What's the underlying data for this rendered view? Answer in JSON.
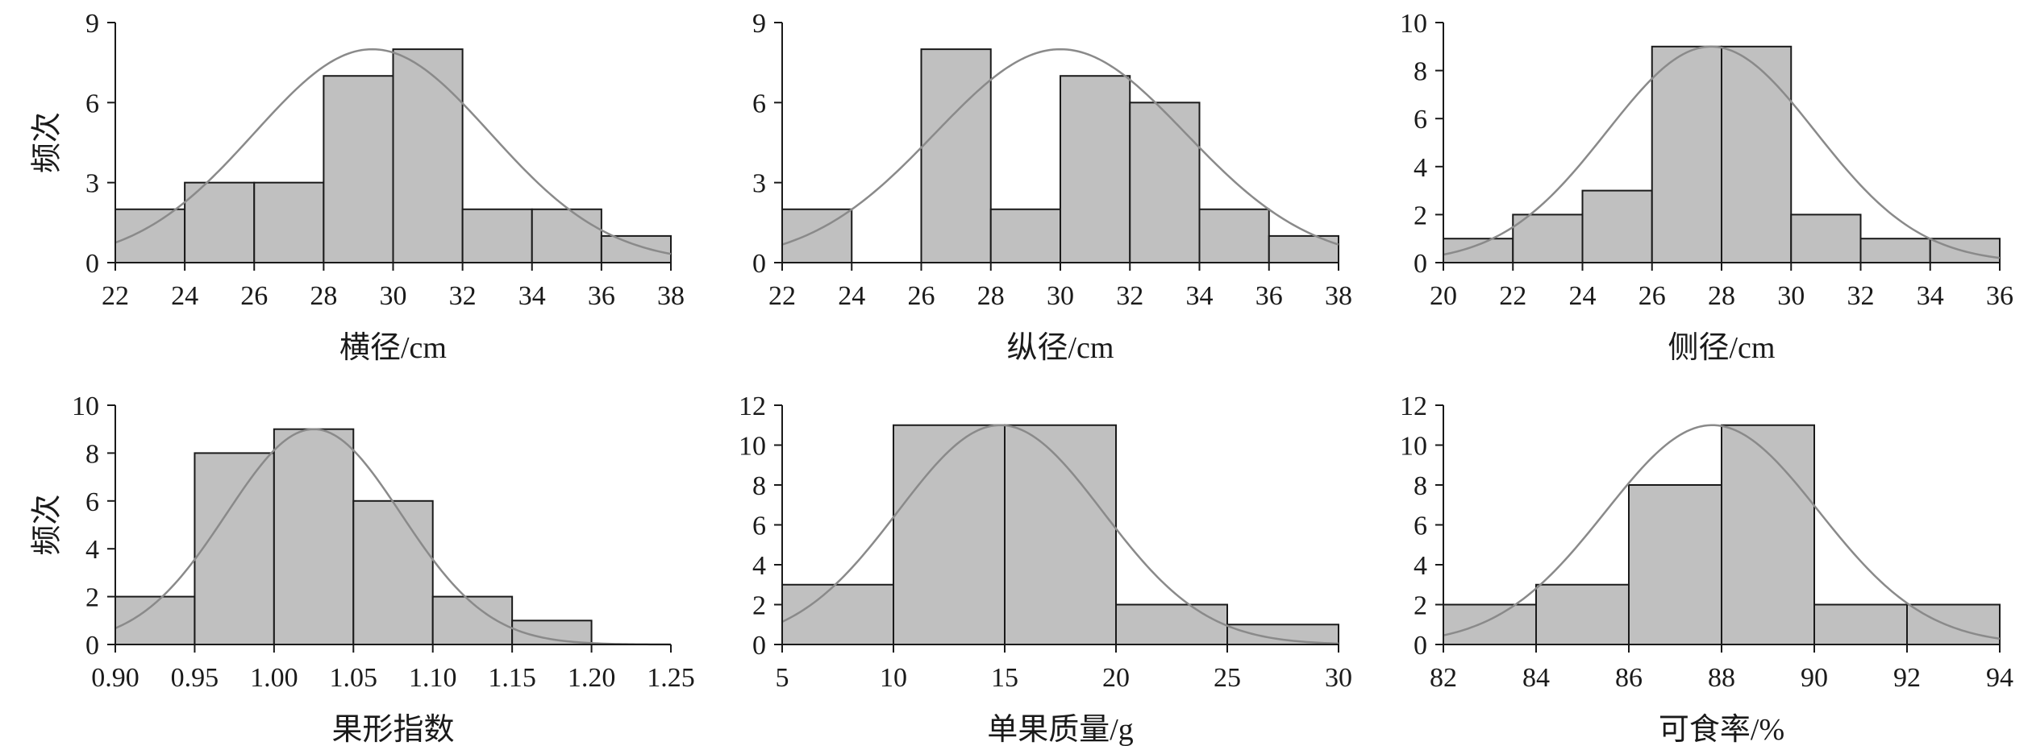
{
  "chart_data": [
    {
      "type": "bar",
      "xlabel": "横径/cm",
      "ylabel": "频次",
      "xlim": [
        22,
        38
      ],
      "ylim": [
        0,
        9
      ],
      "xticks": [
        "22",
        "24",
        "26",
        "28",
        "30",
        "32",
        "34",
        "36",
        "38"
      ],
      "yticks": [
        "0",
        "3",
        "6",
        "9"
      ],
      "bin_edges": [
        22,
        24,
        26,
        28,
        30,
        32,
        34,
        36,
        38
      ],
      "values": [
        2,
        3,
        3,
        7,
        8,
        2,
        2,
        1
      ],
      "normal_curve": {
        "mean": 29.4,
        "sd": 3.4,
        "peak": 8
      }
    },
    {
      "type": "bar",
      "xlabel": "纵径/cm",
      "ylabel": "",
      "xlim": [
        22,
        38
      ],
      "ylim": [
        0,
        9
      ],
      "xticks": [
        "22",
        "24",
        "26",
        "28",
        "30",
        "32",
        "34",
        "36",
        "38"
      ],
      "yticks": [
        "0",
        "3",
        "6",
        "9"
      ],
      "bin_edges": [
        22,
        24,
        26,
        28,
        30,
        32,
        34,
        36,
        38
      ],
      "values": [
        2,
        0,
        8,
        2,
        7,
        6,
        2,
        1
      ],
      "normal_curve": {
        "mean": 30.0,
        "sd": 3.6,
        "peak": 8
      }
    },
    {
      "type": "bar",
      "xlabel": "侧径/cm",
      "ylabel": "",
      "xlim": [
        20,
        36
      ],
      "ylim": [
        0,
        10
      ],
      "xticks": [
        "20",
        "22",
        "24",
        "26",
        "28",
        "30",
        "32",
        "34",
        "36"
      ],
      "yticks": [
        "0",
        "2",
        "4",
        "6",
        "8",
        "10"
      ],
      "bin_edges": [
        20,
        22,
        24,
        26,
        28,
        30,
        32,
        34,
        36
      ],
      "values": [
        1,
        2,
        3,
        9,
        9,
        2,
        1,
        1
      ],
      "normal_curve": {
        "mean": 27.7,
        "sd": 3.0,
        "peak": 9
      }
    },
    {
      "type": "bar",
      "xlabel": "果形指数",
      "ylabel": "频次",
      "xlim": [
        0.9,
        1.25
      ],
      "ylim": [
        0,
        10
      ],
      "xticks": [
        "0.90",
        "0.95",
        "1.00",
        "1.05",
        "1.10",
        "1.15",
        "1.20",
        "1.25"
      ],
      "yticks": [
        "0",
        "2",
        "4",
        "6",
        "8",
        "10"
      ],
      "bin_edges": [
        0.9,
        0.95,
        1.0,
        1.05,
        1.1,
        1.15,
        1.2
      ],
      "values": [
        2,
        8,
        9,
        6,
        2,
        1
      ],
      "normal_curve": {
        "mean": 1.025,
        "sd": 0.055,
        "peak": 9
      }
    },
    {
      "type": "bar",
      "xlabel": "单果质量/g",
      "ylabel": "",
      "xlim": [
        5,
        30
      ],
      "ylim": [
        0,
        12
      ],
      "xticks": [
        "5",
        "10",
        "15",
        "20",
        "25",
        "30"
      ],
      "yticks": [
        "0",
        "2",
        "4",
        "6",
        "8",
        "10",
        "12"
      ],
      "bin_edges": [
        5,
        10,
        15,
        20,
        25,
        30
      ],
      "values": [
        3,
        11,
        11,
        2,
        1
      ],
      "normal_curve": {
        "mean": 14.8,
        "sd": 4.6,
        "peak": 11
      }
    },
    {
      "type": "bar",
      "xlabel": "可食率/%",
      "ylabel": "",
      "xlim": [
        82,
        94
      ],
      "ylim": [
        0,
        12
      ],
      "xticks": [
        "82",
        "84",
        "86",
        "88",
        "90",
        "92",
        "94"
      ],
      "yticks": [
        "0",
        "2",
        "4",
        "6",
        "8",
        "10",
        "12"
      ],
      "bin_edges": [
        82,
        84,
        86,
        88,
        90,
        92,
        94
      ],
      "values": [
        2,
        3,
        8,
        11,
        2,
        2
      ],
      "normal_curve": {
        "mean": 87.8,
        "sd": 2.3,
        "peak": 11
      }
    }
  ],
  "colors": {
    "bar_fill": "#c0c0c0",
    "bar_stroke": "#1a1a1a",
    "curve": "#8a8a8a",
    "axis": "#1a1a1a"
  }
}
